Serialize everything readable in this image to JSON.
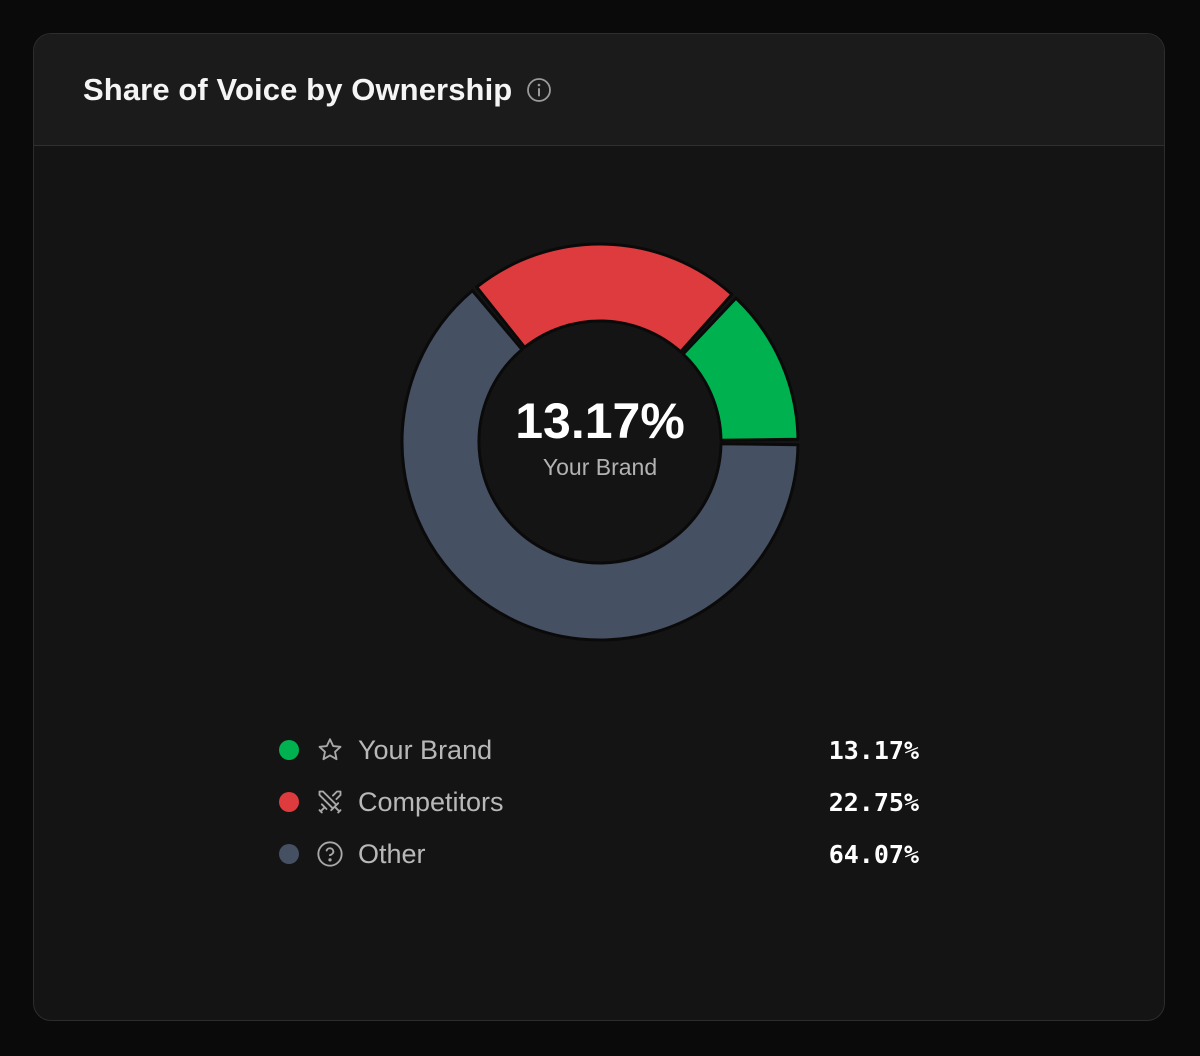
{
  "card": {
    "title": "Share of Voice by Ownership",
    "info_icon": "info-circle-icon"
  },
  "center": {
    "value": "13.17%",
    "label": "Your Brand"
  },
  "legend": [
    {
      "label": "Your Brand",
      "value": "13.17%",
      "color": "#00b14f",
      "icon": "star-icon"
    },
    {
      "label": "Competitors",
      "value": "22.75%",
      "color": "#de3b3e",
      "icon": "crossed-swords-icon"
    },
    {
      "label": "Other",
      "value": "64.07%",
      "color": "#465063",
      "icon": "question-circle-icon"
    }
  ],
  "chart_data": {
    "type": "pie",
    "variant": "donut",
    "categories": [
      "Your Brand",
      "Competitors",
      "Other"
    ],
    "values": [
      13.17,
      22.75,
      64.07
    ],
    "colors": [
      "#00b14f",
      "#de3b3e",
      "#465063"
    ],
    "unit": "%",
    "legend": "bottom"
  }
}
